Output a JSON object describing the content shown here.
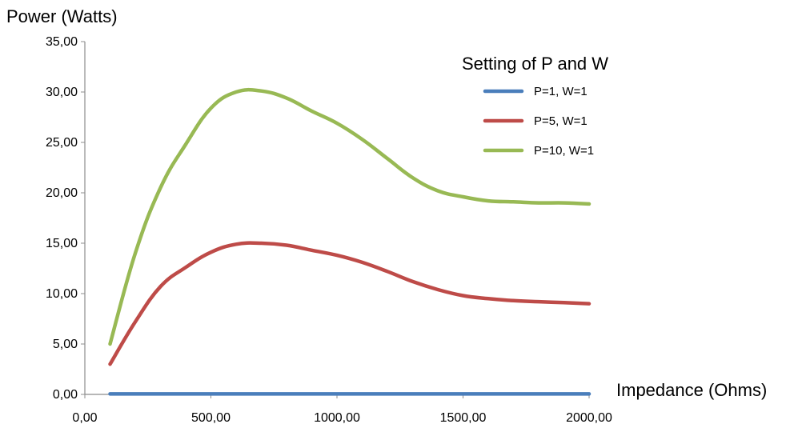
{
  "chart_data": {
    "type": "line",
    "title": "",
    "xlabel": "Impedance (Ohms)",
    "ylabel": "Power (Watts)",
    "xlim": [
      0,
      2000
    ],
    "ylim": [
      0,
      35
    ],
    "x_ticks": [
      {
        "value": 0,
        "label": "0,00"
      },
      {
        "value": 500,
        "label": "500,00"
      },
      {
        "value": 1000,
        "label": "1000,00"
      },
      {
        "value": 1500,
        "label": "1500,00"
      },
      {
        "value": 2000,
        "label": "2000,00"
      }
    ],
    "y_ticks": [
      {
        "value": 0,
        "label": "0,00"
      },
      {
        "value": 5,
        "label": "5,00"
      },
      {
        "value": 10,
        "label": "10,00"
      },
      {
        "value": 15,
        "label": "15,00"
      },
      {
        "value": 20,
        "label": "20,00"
      },
      {
        "value": 25,
        "label": "25,00"
      },
      {
        "value": 30,
        "label": "30,00"
      },
      {
        "value": 35,
        "label": "35,00"
      }
    ],
    "grid": false,
    "legend": {
      "title": "Setting of P and W",
      "position": "top-right"
    },
    "x": [
      100,
      200,
      300,
      400,
      500,
      600,
      700,
      800,
      900,
      1000,
      1100,
      1200,
      1300,
      1400,
      1500,
      1600,
      1700,
      1800,
      1900,
      2000
    ],
    "series": [
      {
        "name": "P=1, W=1",
        "color": "#4a7ebb",
        "values": [
          0.05,
          0.05,
          0.05,
          0.05,
          0.05,
          0.05,
          0.05,
          0.05,
          0.05,
          0.05,
          0.05,
          0.05,
          0.05,
          0.05,
          0.05,
          0.05,
          0.05,
          0.05,
          0.05,
          0.05
        ]
      },
      {
        "name": "P=5, W=1",
        "color": "#be4b48",
        "values": [
          3.0,
          7.2,
          10.7,
          12.6,
          14.1,
          14.9,
          15.0,
          14.8,
          14.3,
          13.8,
          13.1,
          12.2,
          11.2,
          10.4,
          9.8,
          9.5,
          9.3,
          9.2,
          9.1,
          9.0
        ]
      },
      {
        "name": "P=10, W=1",
        "color": "#98b954",
        "values": [
          5.0,
          14.0,
          20.5,
          24.8,
          28.4,
          30.0,
          30.1,
          29.4,
          28.1,
          26.9,
          25.3,
          23.4,
          21.5,
          20.2,
          19.6,
          19.2,
          19.1,
          19.0,
          19.0,
          18.9
        ]
      }
    ]
  }
}
